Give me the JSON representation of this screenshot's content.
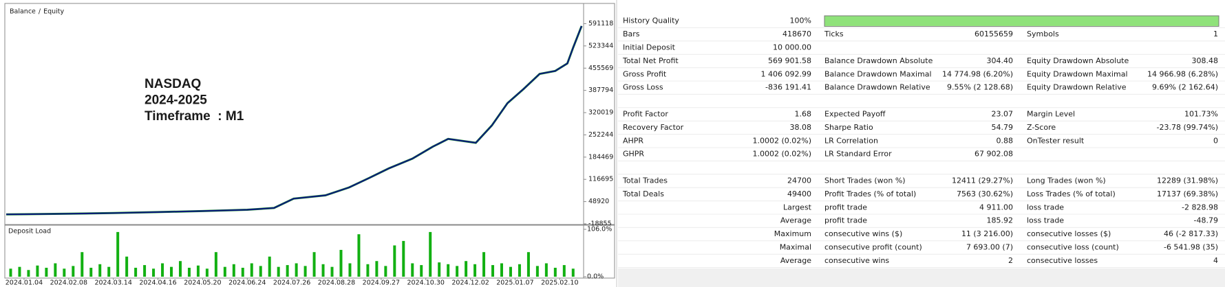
{
  "chart_data": [
    {
      "type": "line",
      "legend_separator": "/",
      "annotations": [
        "NASDAQ",
        "2024-2025",
        "Timeframe  : M1"
      ],
      "annotation_color": "#e8232b",
      "x": [
        -0.4,
        0,
        1,
        2,
        3,
        4,
        5,
        5.6,
        6.04,
        6.75,
        7.28,
        7.73,
        8.17,
        8.7,
        9.15,
        9.5,
        10.12,
        10.48,
        10.83,
        11.19,
        11.55,
        11.9,
        12.17,
        12.3,
        12.49
      ],
      "series": [
        {
          "name": "Balance",
          "color": "#0a1a7a",
          "values": [
            10000,
            10500,
            12000,
            14000,
            17000,
            20000,
            24000,
            29500,
            58000,
            68000,
            92000,
            121000,
            150000,
            180000,
            216000,
            240000,
            228000,
            281000,
            349000,
            392000,
            438000,
            447000,
            470000,
            518000,
            584000
          ]
        },
        {
          "name": "Equity",
          "color": "#1fa51f",
          "values": [
            10000,
            10500,
            12000,
            14000,
            17000,
            20000,
            24000,
            29500,
            58000,
            68000,
            92000,
            121000,
            150000,
            180000,
            216000,
            240000,
            228000,
            281000,
            349000,
            392000,
            438000,
            447000,
            470000,
            518000,
            584000
          ]
        }
      ],
      "xlim": [
        -0.4,
        12.55
      ],
      "ylim": [
        -18855,
        644400
      ],
      "yticks": [
        591118,
        523344,
        455569,
        387794,
        320019,
        252244,
        184469,
        116695,
        48920,
        -18855
      ],
      "grid": false
    },
    {
      "type": "bar",
      "title": "Deposit Load",
      "color": "#12b012",
      "x": [
        -0.3,
        -0.1,
        0.1,
        0.3,
        0.5,
        0.7,
        0.9,
        1.1,
        1.3,
        1.5,
        1.7,
        1.9,
        2.1,
        2.3,
        2.5,
        2.7,
        2.9,
        3.1,
        3.3,
        3.5,
        3.7,
        3.9,
        4.1,
        4.3,
        4.5,
        4.7,
        4.9,
        5.1,
        5.3,
        5.5,
        5.7,
        5.9,
        6.1,
        6.3,
        6.5,
        6.7,
        6.9,
        7.1,
        7.3,
        7.5,
        7.7,
        7.9,
        8.1,
        8.3,
        8.5,
        8.7,
        8.9,
        9.1,
        9.3,
        9.5,
        9.7,
        9.9,
        10.1,
        10.3,
        10.5,
        10.7,
        10.9,
        11.1,
        11.3,
        11.5,
        11.7,
        11.9,
        12.1,
        12.3
      ],
      "values": [
        18,
        22,
        15,
        25,
        20,
        30,
        18,
        24,
        55,
        20,
        28,
        22,
        100,
        45,
        20,
        26,
        18,
        30,
        22,
        35,
        20,
        25,
        18,
        55,
        22,
        28,
        20,
        30,
        24,
        45,
        22,
        26,
        30,
        24,
        55,
        28,
        22,
        60,
        30,
        95,
        28,
        35,
        24,
        70,
        80,
        30,
        26,
        100,
        32,
        28,
        24,
        35,
        28,
        55,
        26,
        30,
        22,
        28,
        55,
        24,
        30,
        20,
        26,
        18
      ],
      "xlim": [
        -0.4,
        12.55
      ],
      "xticks": [
        {
          "value": 0,
          "label": "2024.01.04"
        },
        {
          "value": 1,
          "label": "2024.02.08"
        },
        {
          "value": 2,
          "label": "2024.03.14"
        },
        {
          "value": 3,
          "label": "2024.04.16"
        },
        {
          "value": 4,
          "label": "2024.05.20"
        },
        {
          "value": 5,
          "label": "2024.06.24"
        },
        {
          "value": 6,
          "label": "2024.07.26"
        },
        {
          "value": 7,
          "label": "2024.08.28"
        },
        {
          "value": 8,
          "label": "2024.09.27"
        },
        {
          "value": 9,
          "label": "2024.10.30"
        },
        {
          "value": 10,
          "label": "2024.12.02"
        },
        {
          "value": 11,
          "label": "2025.01.07"
        },
        {
          "value": 12,
          "label": "2025.02.10"
        }
      ],
      "ylim": [
        0,
        106
      ],
      "yticks": [
        {
          "value": 106,
          "label": "106.0%"
        },
        {
          "value": 0,
          "label": "0.0%"
        }
      ],
      "grid": false
    }
  ],
  "report": {
    "history_quality": {
      "label": "History Quality",
      "value": 100,
      "value_label": "100%",
      "color": "#8fe27a"
    },
    "rows": [
      [
        "Bars",
        "418670",
        "Ticks",
        "60155659",
        "Symbols",
        "1"
      ],
      [
        "Initial Deposit",
        "10 000.00",
        null,
        null,
        null,
        null
      ],
      [
        "Total Net Profit",
        "569 901.58",
        "Balance Drawdown Absolute",
        "304.40",
        "Equity Drawdown Absolute",
        "308.48"
      ],
      [
        "Gross Profit",
        "1 406 092.99",
        "Balance Drawdown Maximal",
        "14 774.98 (6.20%)",
        "Equity Drawdown Maximal",
        "14 966.98 (6.28%)"
      ],
      [
        "Gross Loss",
        "-836 191.41",
        "Balance Drawdown Relative",
        "9.55% (2 128.68)",
        "Equity Drawdown Relative",
        "9.69% (2 162.64)"
      ],
      [],
      [
        "Profit Factor",
        "1.68",
        "Expected Payoff",
        "23.07",
        "Margin Level",
        "101.73%"
      ],
      [
        "Recovery Factor",
        "38.08",
        "Sharpe Ratio",
        "54.79",
        "Z-Score",
        "-23.78 (99.74%)"
      ],
      [
        "AHPR",
        "1.0002 (0.02%)",
        "LR Correlation",
        "0.88",
        "OnTester result",
        "0"
      ],
      [
        "GHPR",
        "1.0002 (0.02%)",
        "LR Standard Error",
        "67 902.08",
        null,
        null
      ],
      [],
      [
        "Total Trades",
        "24700",
        "Short Trades (won %)",
        "12411 (29.27%)",
        "Long Trades (won %)",
        "12289 (31.98%)"
      ],
      [
        "Total Deals",
        "49400",
        "Profit Trades (% of total)",
        "7563 (30.62%)",
        "Loss Trades (% of total)",
        "17137 (69.38%)"
      ],
      [
        null,
        "Largest",
        "profit trade",
        "4 911.00",
        "loss trade",
        "-2 828.98"
      ],
      [
        null,
        "Average",
        "profit trade",
        "185.92",
        "loss trade",
        "-48.79"
      ],
      [
        null,
        "Maximum",
        "consecutive wins ($)",
        "11 (3 216.00)",
        "consecutive losses ($)",
        "46 (-2 817.33)"
      ],
      [
        null,
        "Maximal",
        "consecutive profit (count)",
        "7 693.00 (7)",
        "consecutive loss (count)",
        "-6 541.98 (35)"
      ],
      [
        null,
        "Average",
        "consecutive wins",
        "2",
        "consecutive losses",
        "4"
      ]
    ]
  }
}
